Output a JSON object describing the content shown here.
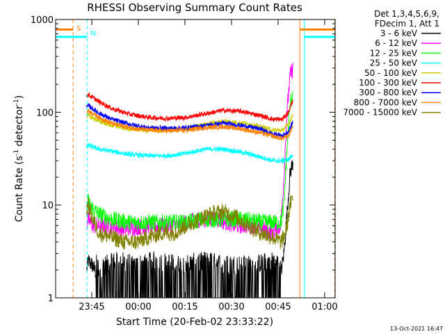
{
  "chart_data": {
    "type": "line",
    "title": "RHESSI Observing Summary Count Rates",
    "xlabel": "Start Time (20-Feb-02 23:33:22)",
    "ylabel": "Count Rate (s⁻¹ detector⁻¹)",
    "ylabel_parts": {
      "base": "Count Rate (s",
      "sup1": "-1",
      "mid": " detector",
      "sup2": "-1",
      "end": ")"
    },
    "y_scale": "log",
    "ylim": [
      1,
      1000
    ],
    "x_units": "minutes after 23:33:22",
    "xlim": [
      0,
      90
    ],
    "x_ticks": [
      {
        "t": 11.63,
        "label": "23:45"
      },
      {
        "t": 26.63,
        "label": "00:00"
      },
      {
        "t": 41.63,
        "label": "00:15"
      },
      {
        "t": 56.63,
        "label": "00:30"
      },
      {
        "t": 71.63,
        "label": "00:45"
      },
      {
        "t": 86.63,
        "label": "01:00"
      }
    ],
    "y_ticks": [
      {
        "v": 1,
        "label": "1"
      },
      {
        "v": 10,
        "label": "10"
      },
      {
        "v": 100,
        "label": "100"
      },
      {
        "v": 1000,
        "label": "1000"
      }
    ],
    "legend": {
      "header": [
        "Det 1,3,4,5,6,9,",
        "FDecim 1, Att 1"
      ],
      "position": "right"
    },
    "series": [
      {
        "name": "3 - 6 keV",
        "color": "#000000",
        "x": [
          10,
          10.5,
          12,
          14,
          16,
          20,
          26,
          32,
          40,
          48,
          56,
          64,
          70,
          72.5,
          73.5,
          74.5,
          75.5,
          76.5
        ],
        "y": [
          2,
          2.5,
          2.2,
          1.6,
          1.8,
          2.0,
          1.8,
          2.0,
          1.8,
          2.0,
          1.8,
          1.8,
          2.0,
          1.8,
          3,
          8,
          22,
          30
        ]
      },
      {
        "name": "6 - 12 keV",
        "color": "#ff00ff",
        "x": [
          10,
          10.5,
          12,
          16,
          22,
          30,
          38,
          46,
          52,
          58,
          64,
          70,
          72.5,
          73.5,
          74.5,
          75.5,
          76.5
        ],
        "y": [
          6,
          7,
          6,
          6,
          5.5,
          6,
          6,
          7,
          7,
          6,
          6,
          5,
          6,
          20,
          100,
          250,
          300
        ]
      },
      {
        "name": "12 - 25 keV",
        "color": "#00ff00",
        "x": [
          10,
          10.5,
          12,
          14,
          18,
          24,
          30,
          36,
          42,
          48,
          54,
          60,
          66,
          72.5,
          73.5,
          74.5,
          75.5,
          76.5
        ],
        "y": [
          10,
          11,
          9,
          8,
          7,
          6.5,
          6.5,
          6.5,
          6.5,
          7,
          7,
          7,
          6.5,
          6.5,
          10,
          40,
          120,
          170
        ]
      },
      {
        "name": "25 - 50 keV",
        "color": "#00ffff",
        "x": [
          10,
          10.5,
          14,
          18,
          24,
          30,
          36,
          42,
          48,
          54,
          60,
          66,
          70,
          73,
          75,
          76.5
        ],
        "y": [
          42,
          44,
          40,
          38,
          35,
          34,
          34,
          36,
          40,
          40,
          37,
          33,
          30,
          30,
          31,
          35
        ]
      },
      {
        "name": "50 - 100 keV",
        "color": "#cccc00",
        "x": [
          10,
          10.5,
          14,
          18,
          24,
          30,
          36,
          42,
          48,
          54,
          60,
          66,
          70,
          73,
          75,
          76.5
        ],
        "y": [
          90,
          92,
          80,
          72,
          66,
          64,
          64,
          66,
          74,
          80,
          77,
          70,
          64,
          64,
          74,
          95
        ]
      },
      {
        "name": "100 - 300 keV",
        "color": "#ff0000",
        "x": [
          10,
          10.5,
          14,
          18,
          24,
          30,
          36,
          42,
          48,
          54,
          60,
          66,
          70,
          73,
          75,
          76.5
        ],
        "y": [
          150,
          155,
          130,
          110,
          95,
          88,
          86,
          88,
          96,
          105,
          102,
          92,
          84,
          84,
          100,
          140
        ]
      },
      {
        "name": "300 - 800 keV",
        "color": "#0000ff",
        "x": [
          10,
          10.5,
          14,
          18,
          24,
          30,
          36,
          42,
          48,
          54,
          60,
          66,
          70,
          73,
          75,
          76.5
        ],
        "y": [
          112,
          118,
          98,
          84,
          74,
          68,
          67,
          68,
          72,
          76,
          72,
          66,
          58,
          56,
          62,
          80
        ]
      },
      {
        "name": "800 - 7000 keV",
        "color": "#ff8000",
        "x": [
          10,
          10.5,
          14,
          18,
          24,
          30,
          36,
          42,
          48,
          54,
          60,
          66,
          70,
          73,
          75,
          76.5
        ],
        "y": [
          100,
          104,
          88,
          76,
          68,
          64,
          63,
          64,
          68,
          70,
          66,
          60,
          55,
          52,
          56,
          72
        ]
      },
      {
        "name": "7000 - 15000 keV",
        "color": "#808000",
        "x": [
          10,
          10.5,
          12,
          14,
          18,
          22,
          26,
          30,
          34,
          38,
          42,
          46,
          50,
          54,
          58,
          62,
          66,
          70,
          72.5,
          73.5,
          74.5,
          75.5,
          76.5
        ],
        "y": [
          9,
          10,
          7,
          5,
          4.5,
          4,
          4,
          4.5,
          5,
          5,
          6,
          7,
          8,
          8.5,
          7.5,
          6,
          5,
          4.5,
          4,
          4.5,
          6,
          10,
          12
        ]
      }
    ],
    "markers": [
      {
        "label": "S",
        "t": 5.63,
        "color": "#ff8000",
        "style": "dashed"
      },
      {
        "label": "N",
        "t": 10.13,
        "color": "#00ffff",
        "style": "dashed"
      },
      {
        "label": "",
        "t": 78.63,
        "color": "#ff8000",
        "style": "solid"
      },
      {
        "label": "",
        "t": 80.13,
        "color": "#00ffff",
        "style": "solid"
      },
      {
        "label": "",
        "t": 89.88,
        "color": "#ff8000",
        "style": "dashed"
      },
      {
        "label": "",
        "t": 89.98,
        "color": "#00ffff",
        "style": "dashed"
      }
    ],
    "status_bars": [
      {
        "name": "attenuator",
        "color": "#ff8000",
        "level": 780,
        "segments": [
          [
            0,
            5.63
          ],
          [
            78.63,
            90
          ]
        ]
      },
      {
        "name": "night",
        "color": "#00ffff",
        "level": 650,
        "segments": [
          [
            0,
            10.13
          ],
          [
            80.13,
            90
          ]
        ]
      }
    ],
    "timestamp": "13-Oct-2021 16:47"
  }
}
